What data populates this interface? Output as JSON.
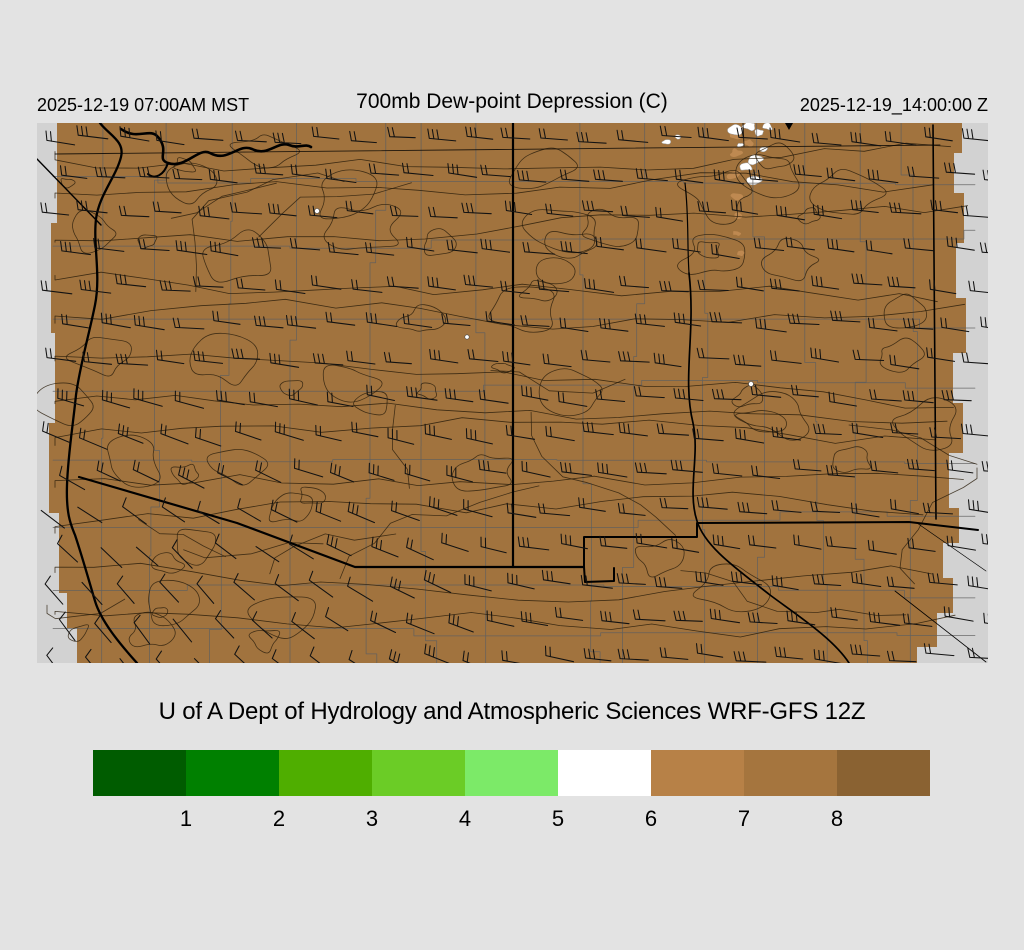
{
  "header": {
    "left_timestamp": "2025-12-19 07:00AM MST",
    "title": "700mb Dew-point Depression (C)",
    "right_timestamp": "2025-12-19_14:00:00 Z"
  },
  "caption": "U of A Dept of Hydrology and Atmospheric Sciences WRF-GFS 12Z",
  "colorbar": {
    "tick_labels": [
      "1",
      "2",
      "3",
      "4",
      "5",
      "6",
      "7",
      "8"
    ],
    "segment_colors": [
      "#005c00",
      "#008000",
      "#4fae00",
      "#6bcc26",
      "#7cea68",
      "#ffffff",
      "#b78147",
      "#a5753e",
      "#8a6232"
    ]
  },
  "map": {
    "description": "700mb dew-point depression shaded field over Arizona and New Mexico with wind barbs, state borders, county lines and terrain contours",
    "colors": {
      "domain_fill": "#a1733e",
      "outside_fill": "#d2d2d2",
      "moist_patch": "#ffffff",
      "moist_patch_light": "#c08a52",
      "state_border": "#000000",
      "county_line": "#5f5f5f",
      "contour": "#2b1e0c",
      "wind_barb": "#121212"
    }
  },
  "page": {
    "background": "#e3e3e3"
  }
}
